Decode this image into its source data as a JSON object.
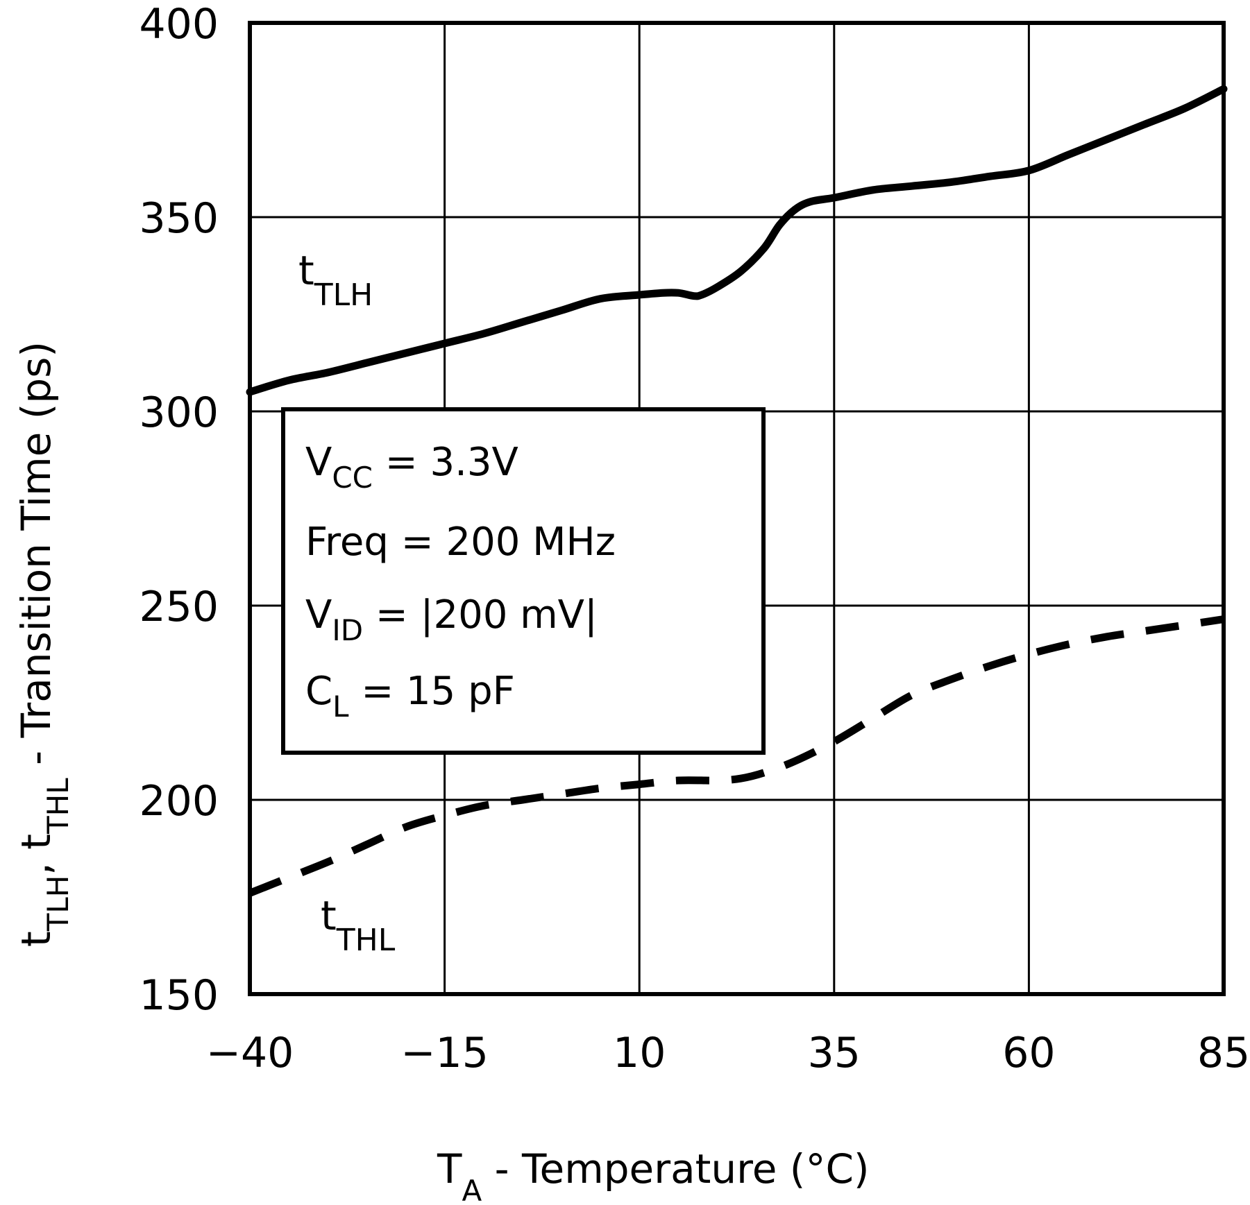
{
  "chart_data": {
    "type": "line",
    "title": "",
    "xlabel": {
      "main": "T",
      "sub": "A",
      "rest": " - Temperature (°C)"
    },
    "ylabel": {
      "t1": "t",
      "t1_sub": "TLH",
      "comma": ", ",
      "t2": "t",
      "t2_sub": "THL",
      "rest": " - Transition Time (ps)"
    },
    "xlim": [
      -40,
      85
    ],
    "ylim": [
      150,
      400
    ],
    "x_ticks": [
      -40,
      -15,
      10,
      35,
      60,
      85
    ],
    "y_ticks": [
      150,
      200,
      250,
      300,
      350,
      400
    ],
    "grid": true,
    "series": [
      {
        "name": "tTLH",
        "label_main": "t",
        "label_sub": "TLH",
        "style": "solid",
        "x": [
          -40,
          -35,
          -30,
          -25,
          -20,
          -15,
          -10,
          -5,
          0,
          5,
          10,
          13,
          15,
          17,
          18,
          20,
          23,
          26,
          28,
          30,
          32,
          35,
          40,
          45,
          50,
          55,
          60,
          65,
          70,
          75,
          80,
          85
        ],
        "y": [
          305,
          308,
          310,
          312.5,
          315,
          317.5,
          320,
          323,
          326,
          329,
          330,
          330.5,
          330.5,
          329.7,
          330,
          332,
          336,
          342,
          348,
          352,
          354,
          355,
          357,
          358,
          359,
          360.5,
          362,
          366,
          370,
          374,
          378,
          383
        ]
      },
      {
        "name": "tTHL",
        "label_main": "t",
        "label_sub": "THL",
        "style": "dashed",
        "x": [
          -40,
          -35,
          -30,
          -25,
          -20,
          -15,
          -10,
          -5,
          0,
          5,
          10,
          15,
          20,
          23,
          26,
          30,
          35,
          40,
          45,
          50,
          55,
          60,
          65,
          70,
          75,
          80,
          85
        ],
        "y": [
          176,
          180,
          184,
          188.5,
          193,
          196,
          198.5,
          200,
          201.5,
          203,
          204,
          205,
          205,
          205.5,
          207,
          210,
          215,
          221,
          227,
          231,
          234.5,
          237.5,
          240,
          242,
          243.5,
          245,
          246.5
        ]
      }
    ],
    "legend_box": {
      "lines": [
        {
          "main": "V",
          "sub": "CC",
          "rest": " = 3.3V"
        },
        {
          "main": "Freq",
          "sub": "",
          "rest": " = 200 MHz"
        },
        {
          "main": "V",
          "sub": "ID",
          "rest": " = |200 mV|"
        },
        {
          "main": "C",
          "sub": "L",
          "rest": " = 15 pF"
        }
      ],
      "placement": "center-left"
    }
  }
}
